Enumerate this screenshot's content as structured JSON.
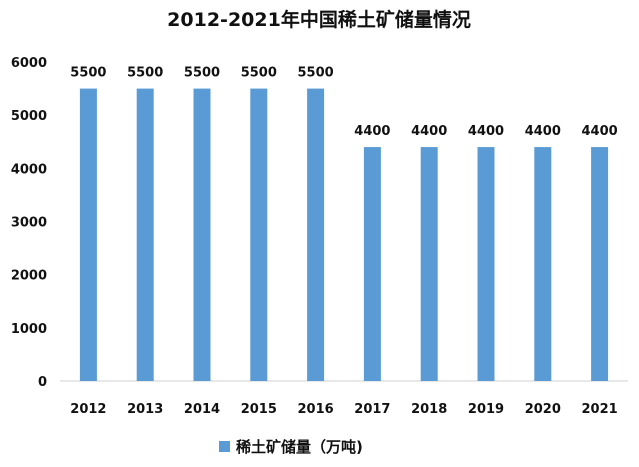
{
  "chart_data": {
    "type": "bar",
    "title": "2012-2021年中国稀土矿储量情况",
    "categories": [
      "2012",
      "2013",
      "2014",
      "2015",
      "2016",
      "2017",
      "2018",
      "2019",
      "2020",
      "2021"
    ],
    "series": [
      {
        "name": "稀土矿储量（万吨)",
        "values": [
          5500,
          5500,
          5500,
          5500,
          5500,
          4400,
          4400,
          4400,
          4400,
          4400
        ],
        "color": "#5b9bd5"
      }
    ],
    "data_labels": [
      "5500",
      "5500",
      "5500",
      "5500",
      "5500",
      "4400",
      "4400",
      "4400",
      "4400",
      "4400"
    ],
    "yticks": [
      "0",
      "1000",
      "2000",
      "3000",
      "4000",
      "5000",
      "6000"
    ],
    "ylim": [
      0,
      6000
    ],
    "grid": false,
    "legend_position": "bottom"
  }
}
